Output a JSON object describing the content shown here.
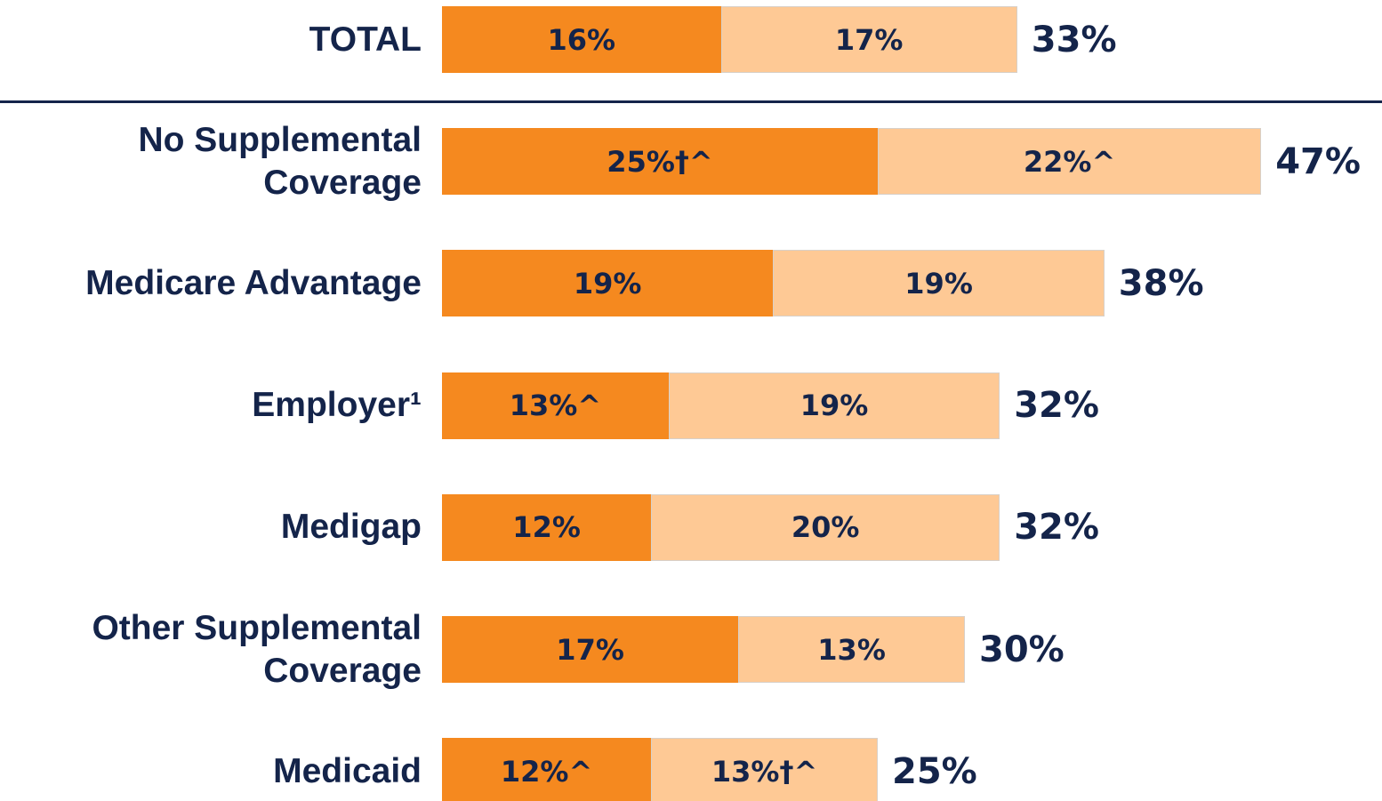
{
  "chart_data": {
    "type": "stacked-bar",
    "categories": [
      "TOTAL",
      "No Supplemental Coverage",
      "Medicare Advantage",
      "Employer¹",
      "Medigap",
      "Other Supplemental Coverage",
      "Medicaid"
    ],
    "series": [
      {
        "color": "#f5891f",
        "values": [
          16,
          25,
          19,
          13,
          12,
          17,
          12
        ],
        "value_labels": [
          "16%",
          "25%†^",
          "19%",
          "13%^",
          "12%",
          "17%",
          "12%^"
        ]
      },
      {
        "color": "#fec995",
        "values": [
          17,
          22,
          19,
          19,
          20,
          13,
          13
        ],
        "value_labels": [
          "17%",
          "22%^",
          "19%",
          "19%",
          "20%",
          "13%",
          "13%†^"
        ]
      }
    ],
    "totals": [
      33,
      47,
      38,
      32,
      32,
      30,
      25
    ],
    "total_labels": [
      "33%",
      "47%",
      "38%",
      "32%",
      "32%",
      "30%",
      "25%"
    ]
  }
}
